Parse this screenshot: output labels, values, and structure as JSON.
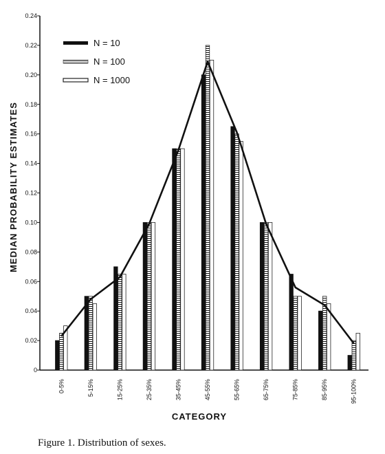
{
  "chart_data": {
    "type": "bar",
    "ylabel": "MEDIAN PROBABILITY ESTIMATES",
    "xlabel": "CATEGORY",
    "ylim": [
      0,
      0.24
    ],
    "yticks": [
      "0",
      "0.02",
      "0.04",
      "0.06",
      "0.08",
      "0.10",
      "0.12",
      "0.14",
      "0.16",
      "0.18",
      "0.20",
      "0.22",
      "0.24"
    ],
    "categories": [
      "0-5%",
      "5-15%",
      "15-25%",
      "25-35%",
      "35-45%",
      "45-55%",
      "55-65%",
      "65-75%",
      "75-85%",
      "85-95%",
      "95-100%"
    ],
    "series": [
      {
        "name": "N = 10",
        "values": [
          0.02,
          0.05,
          0.07,
          0.1,
          0.15,
          0.2,
          0.165,
          0.1,
          0.065,
          0.04,
          0.01
        ]
      },
      {
        "name": "N = 100",
        "values": [
          0.025,
          0.05,
          0.065,
          0.1,
          0.15,
          0.22,
          0.16,
          0.1,
          0.05,
          0.05,
          0.02
        ]
      },
      {
        "name": "N = 1000",
        "values": [
          0.03,
          0.045,
          0.065,
          0.1,
          0.15,
          0.21,
          0.155,
          0.1,
          0.05,
          0.045,
          0.025
        ]
      }
    ],
    "line": {
      "series": "N = 10",
      "values": [
        0.023,
        0.048,
        0.063,
        0.099,
        0.149,
        0.209,
        0.161,
        0.099,
        0.056,
        0.044,
        0.018
      ]
    },
    "legend_placement": "top-left",
    "grid": false
  },
  "caption": "Figure 1. Distribution of sexes."
}
